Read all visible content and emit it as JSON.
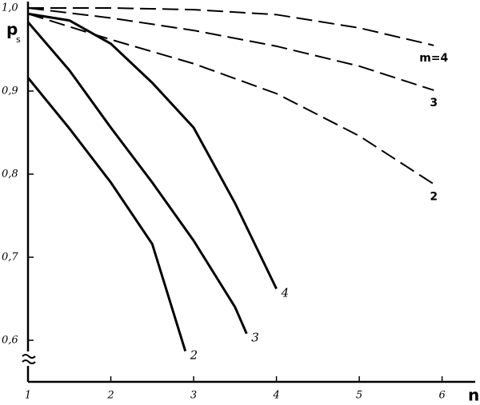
{
  "chart_data": {
    "type": "line",
    "x_label": "n",
    "y_label": "p",
    "y_label_sub": "s",
    "xlim": [
      1,
      6.4
    ],
    "ylim": [
      0.55,
      1.0
    ],
    "xticks": [
      1,
      2,
      3,
      4,
      5,
      6
    ],
    "yticks": [
      {
        "value": 1.0,
        "label": "1,0"
      },
      {
        "value": 0.9,
        "label": "0,9"
      },
      {
        "value": 0.8,
        "label": "0,8"
      },
      {
        "value": 0.7,
        "label": "0,7"
      },
      {
        "value": 0.6,
        "label": "0,6"
      }
    ],
    "series": [
      {
        "name": "m=4",
        "color": "#000000",
        "dashed": true,
        "x": [
          1,
          2,
          3,
          4,
          5,
          5.9
        ],
        "values": [
          1.0,
          1.0,
          0.998,
          0.992,
          0.976,
          0.955
        ]
      },
      {
        "name": "3",
        "color": "#000000",
        "dashed": true,
        "x": [
          1,
          2,
          3,
          4,
          5,
          5.9
        ],
        "values": [
          1.0,
          0.988,
          0.973,
          0.954,
          0.93,
          0.901
        ]
      },
      {
        "name": "2",
        "color": "#000000",
        "dashed": true,
        "x": [
          1,
          2,
          3,
          4,
          5,
          5.9
        ],
        "values": [
          0.993,
          0.962,
          0.933,
          0.897,
          0.846,
          0.788
        ]
      },
      {
        "name": "4",
        "color": "#000000",
        "dashed": false,
        "x": [
          1,
          1.5,
          2,
          2.5,
          3,
          3.5,
          4
        ],
        "values": [
          0.993,
          0.985,
          0.957,
          0.91,
          0.856,
          0.765,
          0.662
        ]
      },
      {
        "name": "3",
        "color": "#000000",
        "dashed": false,
        "x": [
          1,
          1.5,
          2,
          2.5,
          3,
          3.5,
          3.64
        ],
        "values": [
          0.983,
          0.925,
          0.856,
          0.79,
          0.72,
          0.64,
          0.608
        ]
      },
      {
        "name": "2",
        "color": "#000000",
        "dashed": false,
        "x": [
          1,
          1.5,
          2,
          2.5,
          2.9
        ],
        "values": [
          0.916,
          0.855,
          0.79,
          0.716,
          0.587
        ]
      }
    ]
  }
}
